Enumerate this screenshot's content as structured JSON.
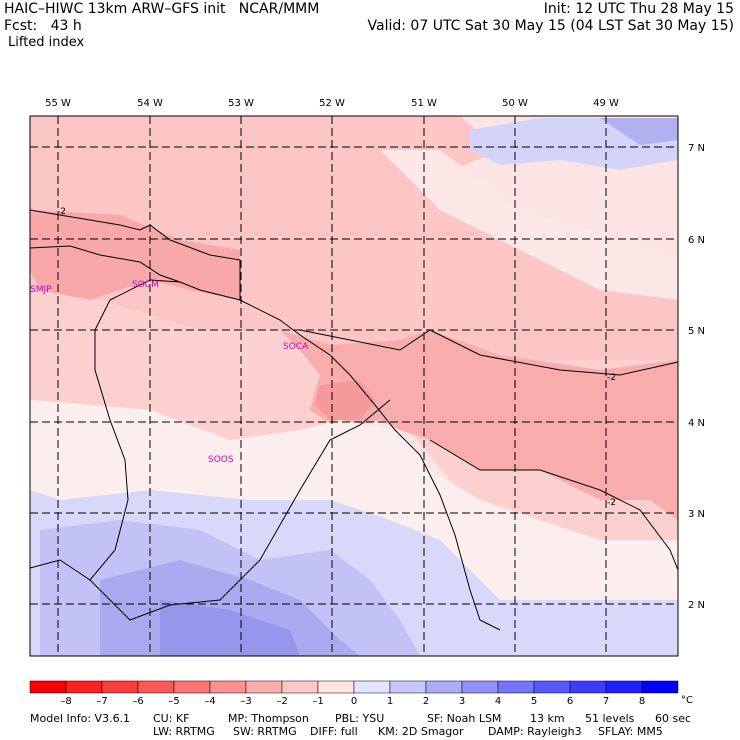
{
  "header": {
    "line1_left": "HAIC–HIWC 13km ARW–GFS init   NCAR/MMM",
    "line1_right": "Init: 12 UTC Thu 28 May 15",
    "line2_left": "Fcst:   43 h",
    "line2_right": "Valid: 07 UTC Sat 30 May 15 (04 LST Sat 30 May 15)",
    "field_name": "Lifted index"
  },
  "map": {
    "lon_labels": [
      "55 W",
      "54 W",
      "53 W",
      "52 W",
      "51 W",
      "50 W",
      "49 W"
    ],
    "lat_labels": [
      "7 N",
      "6 N",
      "5 N",
      "4 N",
      "3 N",
      "2 N"
    ],
    "stations": [
      "SMJP",
      "SOCM",
      "SOCA",
      "SOOS"
    ],
    "contour_labels": [
      "-2",
      "-2",
      "-2"
    ]
  },
  "colorbar": {
    "labels": [
      "–8",
      "–7",
      "–6",
      "–5",
      "–4",
      "–3",
      "–2",
      "–1",
      "0",
      "1",
      "2",
      "3",
      "4",
      "5",
      "6",
      "7",
      "8"
    ],
    "unit": "°C",
    "colors": [
      "#ff0000",
      "#ff2020",
      "#ff3c3c",
      "#ff5858",
      "#ff7474",
      "#ff9090",
      "#ffacac",
      "#ffc8c8",
      "#ffe4e4",
      "#e4e4ff",
      "#c8c8ff",
      "#acacff",
      "#9090ff",
      "#7474ff",
      "#5858ff",
      "#3c3cff",
      "#2020ff",
      "#0000ff"
    ]
  },
  "footer": {
    "model_info": "Model Info: V3.6.1",
    "cu": "CU: KF",
    "mp": "MP: Thompson",
    "pbl": "PBL: YSU",
    "sf": "SF: Noah LSM",
    "res": "13 km",
    "levels": "51 levels",
    "dt": "60 sec",
    "lw": "LW: RRTMG",
    "sw": "SW: RRTMG",
    "diff": "DIFF: full",
    "km": "KM: 2D Smagor",
    "damp": "DAMP: Rayleigh3",
    "sflay": "SFLAY: MM5"
  }
}
